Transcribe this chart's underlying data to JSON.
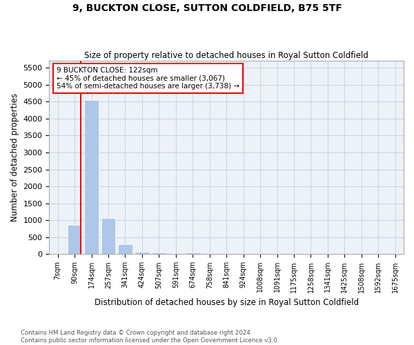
{
  "title": "9, BUCKTON CLOSE, SUTTON COLDFIELD, B75 5TF",
  "subtitle": "Size of property relative to detached houses in Royal Sutton Coldfield",
  "xlabel": "Distribution of detached houses by size in Royal Sutton Coldfield",
  "ylabel": "Number of detached properties",
  "footer_line1": "Contains HM Land Registry data © Crown copyright and database right 2024.",
  "footer_line2": "Contains public sector information licensed under the Open Government Licence v3.0.",
  "bin_labels": [
    "7sqm",
    "90sqm",
    "174sqm",
    "257sqm",
    "341sqm",
    "424sqm",
    "507sqm",
    "591sqm",
    "674sqm",
    "758sqm",
    "841sqm",
    "924sqm",
    "1008sqm",
    "1091sqm",
    "1175sqm",
    "1258sqm",
    "1341sqm",
    "1425sqm",
    "1508sqm",
    "1592sqm",
    "1675sqm"
  ],
  "bar_values": [
    0,
    870,
    4550,
    1070,
    300,
    80,
    55,
    0,
    55,
    0,
    0,
    0,
    0,
    0,
    0,
    0,
    0,
    0,
    0,
    0,
    0
  ],
  "bar_color": "#aec6e8",
  "grid_color": "#c8d8e8",
  "background_color": "#edf2f8",
  "annotation_text_line1": "9 BUCKTON CLOSE: 122sqm",
  "annotation_text_line2": "← 45% of detached houses are smaller (3,067)",
  "annotation_text_line3": "54% of semi-detached houses are larger (3,738) →",
  "ylim_max": 5700,
  "yticks": [
    0,
    500,
    1000,
    1500,
    2000,
    2500,
    3000,
    3500,
    4000,
    4500,
    5000,
    5500
  ]
}
